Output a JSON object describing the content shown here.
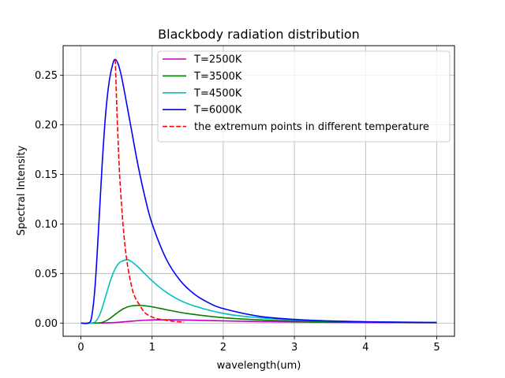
{
  "chart_data": {
    "type": "line",
    "title": "Blackbody radiation distribution",
    "xlabel": "wavelength(um)",
    "ylabel": "Spectral Intensity",
    "xlim": [
      -0.25,
      5.25
    ],
    "ylim": [
      -0.0133,
      0.2798
    ],
    "xticks": [
      "0",
      "1",
      "2",
      "3",
      "4",
      "5"
    ],
    "yticks": [
      "0.00",
      "0.05",
      "0.10",
      "0.15",
      "0.20",
      "0.25"
    ],
    "grid": true,
    "legend_position": "top-right",
    "series": [
      {
        "name": "T=2500K",
        "color": "#bf00bf",
        "style": "solid",
        "x": [
          0.0,
          0.3,
          0.5,
          0.7,
          0.9,
          1.16,
          1.5,
          2.0,
          2.5,
          3.0,
          3.5,
          4.0,
          4.5,
          5.0
        ],
        "y": [
          0.0,
          1e-05,
          0.00062,
          0.00186,
          0.00289,
          0.00332,
          0.00305,
          0.00224,
          0.00156,
          0.00107,
          0.00075,
          0.00053,
          0.00039,
          0.00029
        ]
      },
      {
        "name": "T=3500K",
        "color": "#008000",
        "style": "solid",
        "x": [
          0.0,
          0.2,
          0.3,
          0.4,
          0.5,
          0.6,
          0.7,
          0.828,
          1.0,
          1.2,
          1.5,
          2.0,
          2.5,
          3.0,
          3.5,
          4.0,
          4.5,
          5.0
        ],
        "y": [
          0.0,
          1e-05,
          0.00069,
          0.00428,
          0.00978,
          0.0146,
          0.0172,
          0.0178,
          0.0164,
          0.0135,
          0.00957,
          0.00542,
          0.00323,
          0.00204,
          0.00135,
          0.00093,
          0.00066,
          0.00048
        ]
      },
      {
        "name": "T=4500K",
        "color": "#00bfbf",
        "style": "solid",
        "x": [
          0.0,
          0.15,
          0.2,
          0.25,
          0.3,
          0.35,
          0.4,
          0.45,
          0.5,
          0.55,
          0.644,
          0.7,
          0.8,
          0.9,
          1.0,
          1.2,
          1.5,
          2.0,
          2.5,
          3.0,
          3.5,
          4.0,
          4.5,
          5.0
        ],
        "y": [
          0.0,
          0.0001,
          0.0012,
          0.0062,
          0.0155,
          0.0275,
          0.0395,
          0.0498,
          0.0571,
          0.0614,
          0.0638,
          0.0625,
          0.0568,
          0.0497,
          0.0427,
          0.0311,
          0.0196,
          0.0098,
          0.0054,
          0.0032,
          0.002,
          0.0014,
          0.001,
          0.0007
        ]
      },
      {
        "name": "T=6000K",
        "color": "#0000ff",
        "style": "solid",
        "x": [
          0.0,
          0.1,
          0.15,
          0.2,
          0.25,
          0.3,
          0.35,
          0.4,
          0.45,
          0.483,
          0.52,
          0.56,
          0.6,
          0.7,
          0.8,
          0.9,
          1.0,
          1.2,
          1.4,
          1.6,
          1.8,
          2.0,
          2.5,
          3.0,
          3.5,
          4.0,
          4.5,
          5.0
        ],
        "y": [
          0.0,
          0.0,
          0.0059,
          0.0382,
          0.0976,
          0.162,
          0.213,
          0.245,
          0.262,
          0.266,
          0.262,
          0.252,
          0.238,
          0.199,
          0.16,
          0.127,
          0.1003,
          0.0645,
          0.0425,
          0.0289,
          0.0203,
          0.0146,
          0.0069,
          0.0037,
          0.0021,
          0.0013,
          0.0009,
          0.0006
        ]
      },
      {
        "name": "the extremum points in different temperature",
        "color": "#ff0000",
        "style": "dashed",
        "x": [
          0.483,
          0.5,
          0.52,
          0.55,
          0.6,
          0.644,
          0.7,
          0.75,
          0.828,
          0.9,
          1.0,
          1.1,
          1.16,
          1.3,
          1.45
        ],
        "y": [
          0.266,
          0.227,
          0.188,
          0.142,
          0.0925,
          0.0638,
          0.0409,
          0.0277,
          0.0178,
          0.0104,
          0.0061,
          0.004,
          0.0033,
          0.0018,
          0.001
        ]
      }
    ]
  }
}
